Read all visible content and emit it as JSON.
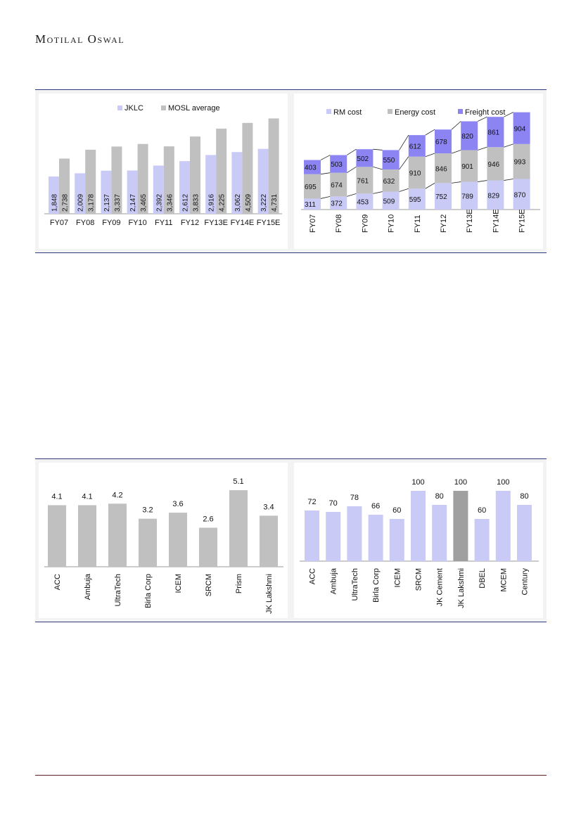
{
  "header": {
    "brand": "Motilal Oswal"
  },
  "colors": {
    "accent_blue": "#c9caf5",
    "grey": "#c0c0c0",
    "freight": "#8c84f2",
    "dark_grey": "#a0a0a0"
  },
  "chart_data": [
    {
      "type": "bar",
      "categories": [
        "FY07",
        "FY08",
        "FY09",
        "FY10",
        "FY11",
        "FY12",
        "FY13E",
        "FY14E",
        "FY15E"
      ],
      "series": [
        {
          "name": "JKLC",
          "values": [
            1848,
            2009,
            2137,
            2147,
            2392,
            2612,
            2916,
            3062,
            3222
          ],
          "labels": [
            "1,848",
            "2,009",
            "2,137",
            "2,147",
            "2,392",
            "2,612",
            "2,916",
            "3,062",
            "3,222"
          ],
          "color": "#c9caf5"
        },
        {
          "name": "MOSL average",
          "values": [
            2738,
            3178,
            3337,
            3465,
            3346,
            3833,
            4225,
            4509,
            4731
          ],
          "labels": [
            "2,738",
            "3,178",
            "3,337",
            "3,465",
            "3,346",
            "3,833",
            "4,225",
            "4,509",
            "4,731"
          ],
          "color": "#c0c0c0"
        }
      ],
      "ylim": [
        0,
        5200
      ],
      "legend": "top"
    },
    {
      "type": "bar",
      "stacked": true,
      "categories": [
        "FY07",
        "FY08",
        "FY09",
        "FY10",
        "FY11",
        "FY12",
        "FY13E",
        "FY14E",
        "FY15E"
      ],
      "series": [
        {
          "name": "RM cost",
          "values": [
            311,
            372,
            453,
            509,
            595,
            752,
            789,
            829,
            870
          ],
          "color": "#c9caf5"
        },
        {
          "name": "Energy cost",
          "values": [
            695,
            674,
            761,
            632,
            910,
            846,
            901,
            946,
            993
          ],
          "color": "#c0c0c0"
        },
        {
          "name": "Freight cost",
          "values": [
            403,
            503,
            502,
            550,
            612,
            678,
            820,
            861,
            904
          ],
          "color": "#8c84f2"
        }
      ],
      "ylim": [
        0,
        2850
      ],
      "legend": "top"
    },
    {
      "type": "bar",
      "categories": [
        "ACC",
        "Ambuja",
        "UltraTech",
        "Birla Corp",
        "ICEM",
        "SRCM",
        "Prism",
        "JK Lakshmi"
      ],
      "values": [
        4.1,
        4.1,
        4.2,
        3.2,
        3.6,
        2.6,
        5.1,
        3.4
      ],
      "labels": [
        "4.1",
        "4.1",
        "4.2",
        "3.2",
        "3.6",
        "2.6",
        "5.1",
        "3.4"
      ],
      "ylim": [
        0,
        5.9
      ]
    },
    {
      "type": "bar",
      "categories": [
        "ACC",
        "Ambuja",
        "UltraTech",
        "Birla Corp",
        "ICEM",
        "SRCM",
        "JK Cement",
        "JK Lakshmi",
        "DBEL",
        "MCEM",
        "Century"
      ],
      "values": [
        72,
        70,
        78,
        66,
        60,
        100,
        80,
        100,
        60,
        100,
        80
      ],
      "labels": [
        "72",
        "70",
        "78",
        "66",
        "60",
        "100",
        "80",
        "100",
        "60",
        "100",
        "80"
      ],
      "highlight": "JK Lakshmi",
      "ylim": [
        0,
        120
      ]
    }
  ]
}
